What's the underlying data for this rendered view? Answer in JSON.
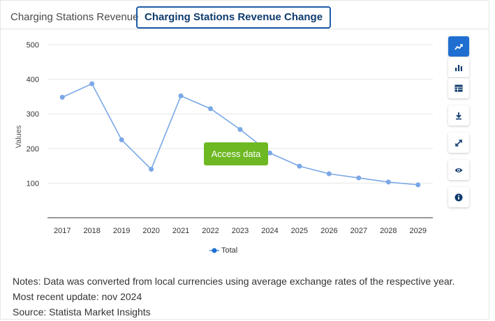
{
  "tabs": [
    {
      "label": "Charging Stations Revenue",
      "active": false
    },
    {
      "label": "Charging Stations Revenue Change",
      "active": true
    }
  ],
  "access_button": "Access data",
  "toolbar": {
    "buttons": [
      "line-chart-icon",
      "bar-chart-icon",
      "table-icon",
      "download-icon",
      "expand-icon",
      "eye-icon",
      "info-icon"
    ]
  },
  "notes": {
    "line1": "Notes: Data was converted from local currencies using average exchange rates of the respective year.",
    "line2": "Most recent update: nov 2024",
    "line3": "Source: Statista Market Insights"
  },
  "colors": {
    "series": "#7aa8e6",
    "accent": "#1f6fd1",
    "access": "#6eb823"
  },
  "chart_data": {
    "type": "line",
    "title": "",
    "xlabel": "",
    "ylabel": "Values",
    "categories": [
      "2017",
      "2018",
      "2019",
      "2020",
      "2021",
      "2022",
      "2023",
      "2024",
      "2025",
      "2026",
      "2027",
      "2028",
      "2029"
    ],
    "yticks": [
      "100",
      "200",
      "300",
      "400",
      "500"
    ],
    "ylim": [
      0,
      500
    ],
    "grid": true,
    "legend_position": "bottom",
    "series": [
      {
        "name": "Total",
        "values": [
          348,
          387,
          225,
          140,
          352,
          315,
          255,
          187,
          149,
          127,
          115,
          103,
          95
        ]
      }
    ]
  }
}
